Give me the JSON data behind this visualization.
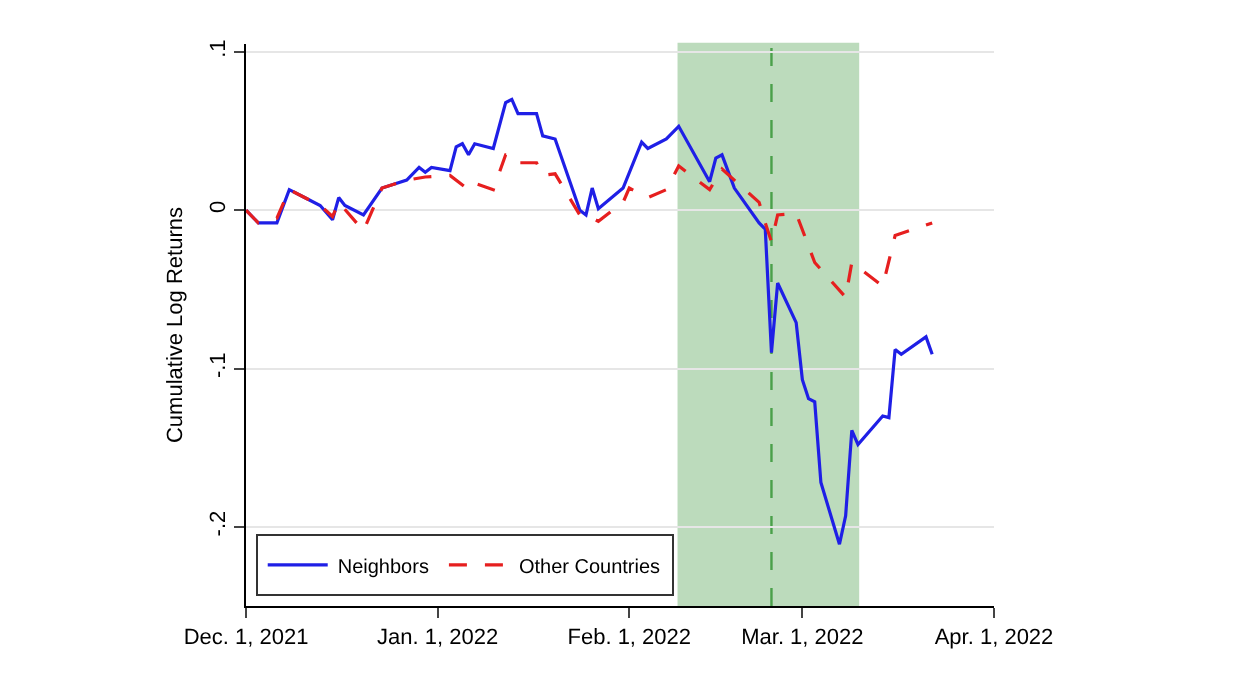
{
  "chart_data": {
    "type": "line",
    "ylabel": "Cumulative Log Returns",
    "xlim": [
      "2021-12-01",
      "2022-04-01"
    ],
    "xticks": [
      {
        "value": "2021-12-01",
        "label": "Dec. 1, 2021"
      },
      {
        "value": "2022-01-01",
        "label": "Jan. 1, 2022"
      },
      {
        "value": "2022-02-01",
        "label": "Feb. 1, 2022"
      },
      {
        "value": "2022-03-01",
        "label": "Mar. 1, 2022"
      },
      {
        "value": "2022-04-01",
        "label": "Apr. 1, 2022"
      }
    ],
    "ylim": [
      -0.25,
      0.105
    ],
    "yticks": [
      {
        "value": 0.1,
        "label": ".1"
      },
      0,
      {
        "value": -0.1,
        "label": "-.1"
      },
      {
        "value": -0.2,
        "label": "-.2"
      }
    ],
    "grid": "y",
    "legend": "bottom left",
    "marker": "none",
    "bands": [
      {
        "axis": "x",
        "from": "2022-02-09",
        "to": "2022-03-10",
        "color": "#5aa85a"
      }
    ],
    "ref_lines": [
      {
        "axis": "x",
        "value": "2022-02-24",
        "color": "#4aa04a",
        "line_style": "dashed"
      }
    ],
    "series": [
      {
        "name": "Neighbors",
        "color": "#1f1fe6",
        "line_style": "solid",
        "x": [
          "2021-12-01",
          "2021-12-03",
          "2021-12-06",
          "2021-12-08",
          "2021-12-10",
          "2021-12-13",
          "2021-12-15",
          "2021-12-16",
          "2021-12-17",
          "2021-12-20",
          "2021-12-23",
          "2021-12-27",
          "2021-12-29",
          "2021-12-30",
          "2021-12-31",
          "2022-01-03",
          "2022-01-04",
          "2022-01-05",
          "2022-01-06",
          "2022-01-07",
          "2022-01-10",
          "2022-01-12",
          "2022-01-13",
          "2022-01-14",
          "2022-01-17",
          "2022-01-18",
          "2022-01-20",
          "2022-01-24",
          "2022-01-25",
          "2022-01-26",
          "2022-01-27",
          "2022-01-31",
          "2022-02-03",
          "2022-02-04",
          "2022-02-07",
          "2022-02-09",
          "2022-02-14",
          "2022-02-15",
          "2022-02-16",
          "2022-02-18",
          "2022-02-22",
          "2022-02-23",
          "2022-02-24",
          "2022-02-25",
          "2022-02-28",
          "2022-03-01",
          "2022-03-02",
          "2022-03-03",
          "2022-03-04",
          "2022-03-07",
          "2022-03-08",
          "2022-03-09",
          "2022-03-10",
          "2022-03-14",
          "2022-03-15",
          "2022-03-16",
          "2022-03-17",
          "2022-03-21",
          "2022-03-22"
        ],
        "values": [
          0,
          -0.008,
          -0.008,
          0.013,
          0.009,
          0.003,
          -0.006,
          0.008,
          0.003,
          -0.003,
          0.014,
          0.019,
          0.027,
          0.024,
          0.027,
          0.025,
          0.04,
          0.042,
          0.035,
          0.042,
          0.039,
          0.068,
          0.07,
          0.061,
          0.061,
          0.047,
          0.045,
          0,
          -0.003,
          0.014,
          0.001,
          0.014,
          0.043,
          0.039,
          0.045,
          0.053,
          0.018,
          0.033,
          0.035,
          0.014,
          -0.008,
          -0.012,
          -0.09,
          -0.046,
          -0.071,
          -0.107,
          -0.119,
          -0.121,
          -0.172,
          -0.211,
          -0.193,
          -0.139,
          -0.148,
          -0.13,
          -0.131,
          -0.088,
          -0.091,
          -0.08,
          -0.091
        ]
      },
      {
        "name": "Other Countries",
        "color": "#e61f1f",
        "line_style": "dashed",
        "x": [
          "2021-12-01",
          "2021-12-03",
          "2021-12-06",
          "2021-12-08",
          "2021-12-13",
          "2021-12-15",
          "2021-12-16",
          "2021-12-20",
          "2021-12-23",
          "2021-12-27",
          "2021-12-30",
          "2022-01-03",
          "2022-01-06",
          "2022-01-07",
          "2022-01-10",
          "2022-01-12",
          "2022-01-13",
          "2022-01-14",
          "2022-01-17",
          "2022-01-18",
          "2022-01-20",
          "2022-01-24",
          "2022-01-25",
          "2022-01-27",
          "2022-01-31",
          "2022-02-01",
          "2022-02-04",
          "2022-02-07",
          "2022-02-09",
          "2022-02-14",
          "2022-02-16",
          "2022-02-22",
          "2022-02-23",
          "2022-02-24",
          "2022-02-25",
          "2022-02-28",
          "2022-03-03",
          "2022-03-08",
          "2022-03-09",
          "2022-03-14",
          "2022-03-16",
          "2022-03-22"
        ],
        "values": [
          0,
          -0.008,
          -0.005,
          0.013,
          0.003,
          -0.004,
          0.005,
          -0.013,
          0.014,
          0.019,
          0.021,
          0.022,
          0.013,
          0.017,
          0.013,
          0.035,
          0.035,
          0.03,
          0.03,
          0.022,
          0.023,
          -0.003,
          -0.003,
          -0.007,
          0.005,
          0.014,
          0.008,
          0.013,
          0.028,
          0.013,
          0.026,
          0.005,
          -0.008,
          -0.02,
          -0.003,
          -0.002,
          -0.033,
          -0.055,
          -0.033,
          -0.048,
          -0.016,
          -0.008
        ]
      }
    ]
  }
}
